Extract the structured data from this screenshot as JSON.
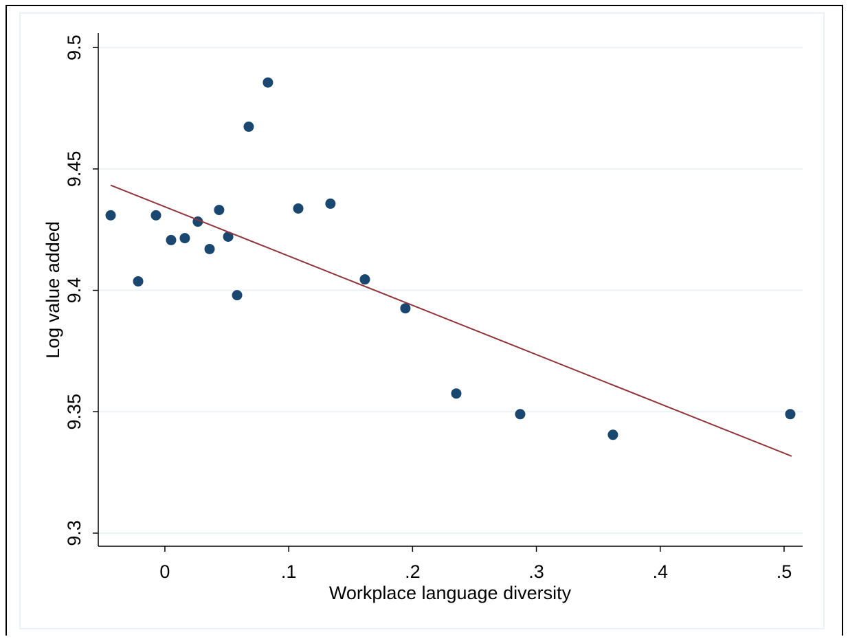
{
  "chart_data": {
    "type": "scatter",
    "x_label": "Workplace language diversity",
    "y_label": "Log value added",
    "points": {
      "color": "#1a476f",
      "x": [
        -0.0438,
        -0.0216,
        -0.0072,
        0.005,
        0.0161,
        0.0266,
        0.0361,
        0.0438,
        0.0511,
        0.0583,
        0.0677,
        0.0832,
        0.1077,
        0.1337,
        0.1615,
        0.1942,
        0.2353,
        0.2869,
        0.3618,
        0.505
      ],
      "values": [
        9.4309,
        9.4037,
        9.4309,
        9.4207,
        9.4215,
        9.4283,
        9.417,
        9.4331,
        9.4221,
        9.398,
        9.4674,
        9.4856,
        9.4337,
        9.4357,
        9.4045,
        9.3926,
        9.3575,
        9.349,
        9.3405,
        9.349
      ]
    },
    "fit_line": {
      "color": "#90353b",
      "x": [
        -0.0438,
        0.5061
      ],
      "values": [
        9.4433,
        9.3317
      ]
    },
    "xlim": [
      -0.0538,
      0.515
    ],
    "ylim": [
      9.2946,
      9.506
    ],
    "xticks": [
      0,
      {
        "value": 0.1,
        "label": ".1"
      },
      {
        "value": 0.2,
        "label": ".2"
      },
      {
        "value": 0.3,
        "label": ".3"
      },
      {
        "value": 0.4,
        "label": ".4"
      },
      {
        "value": 0.5,
        "label": ".5"
      }
    ],
    "yticks": [
      9.3,
      9.35,
      9.4,
      9.45,
      9.5
    ],
    "grid": true
  }
}
